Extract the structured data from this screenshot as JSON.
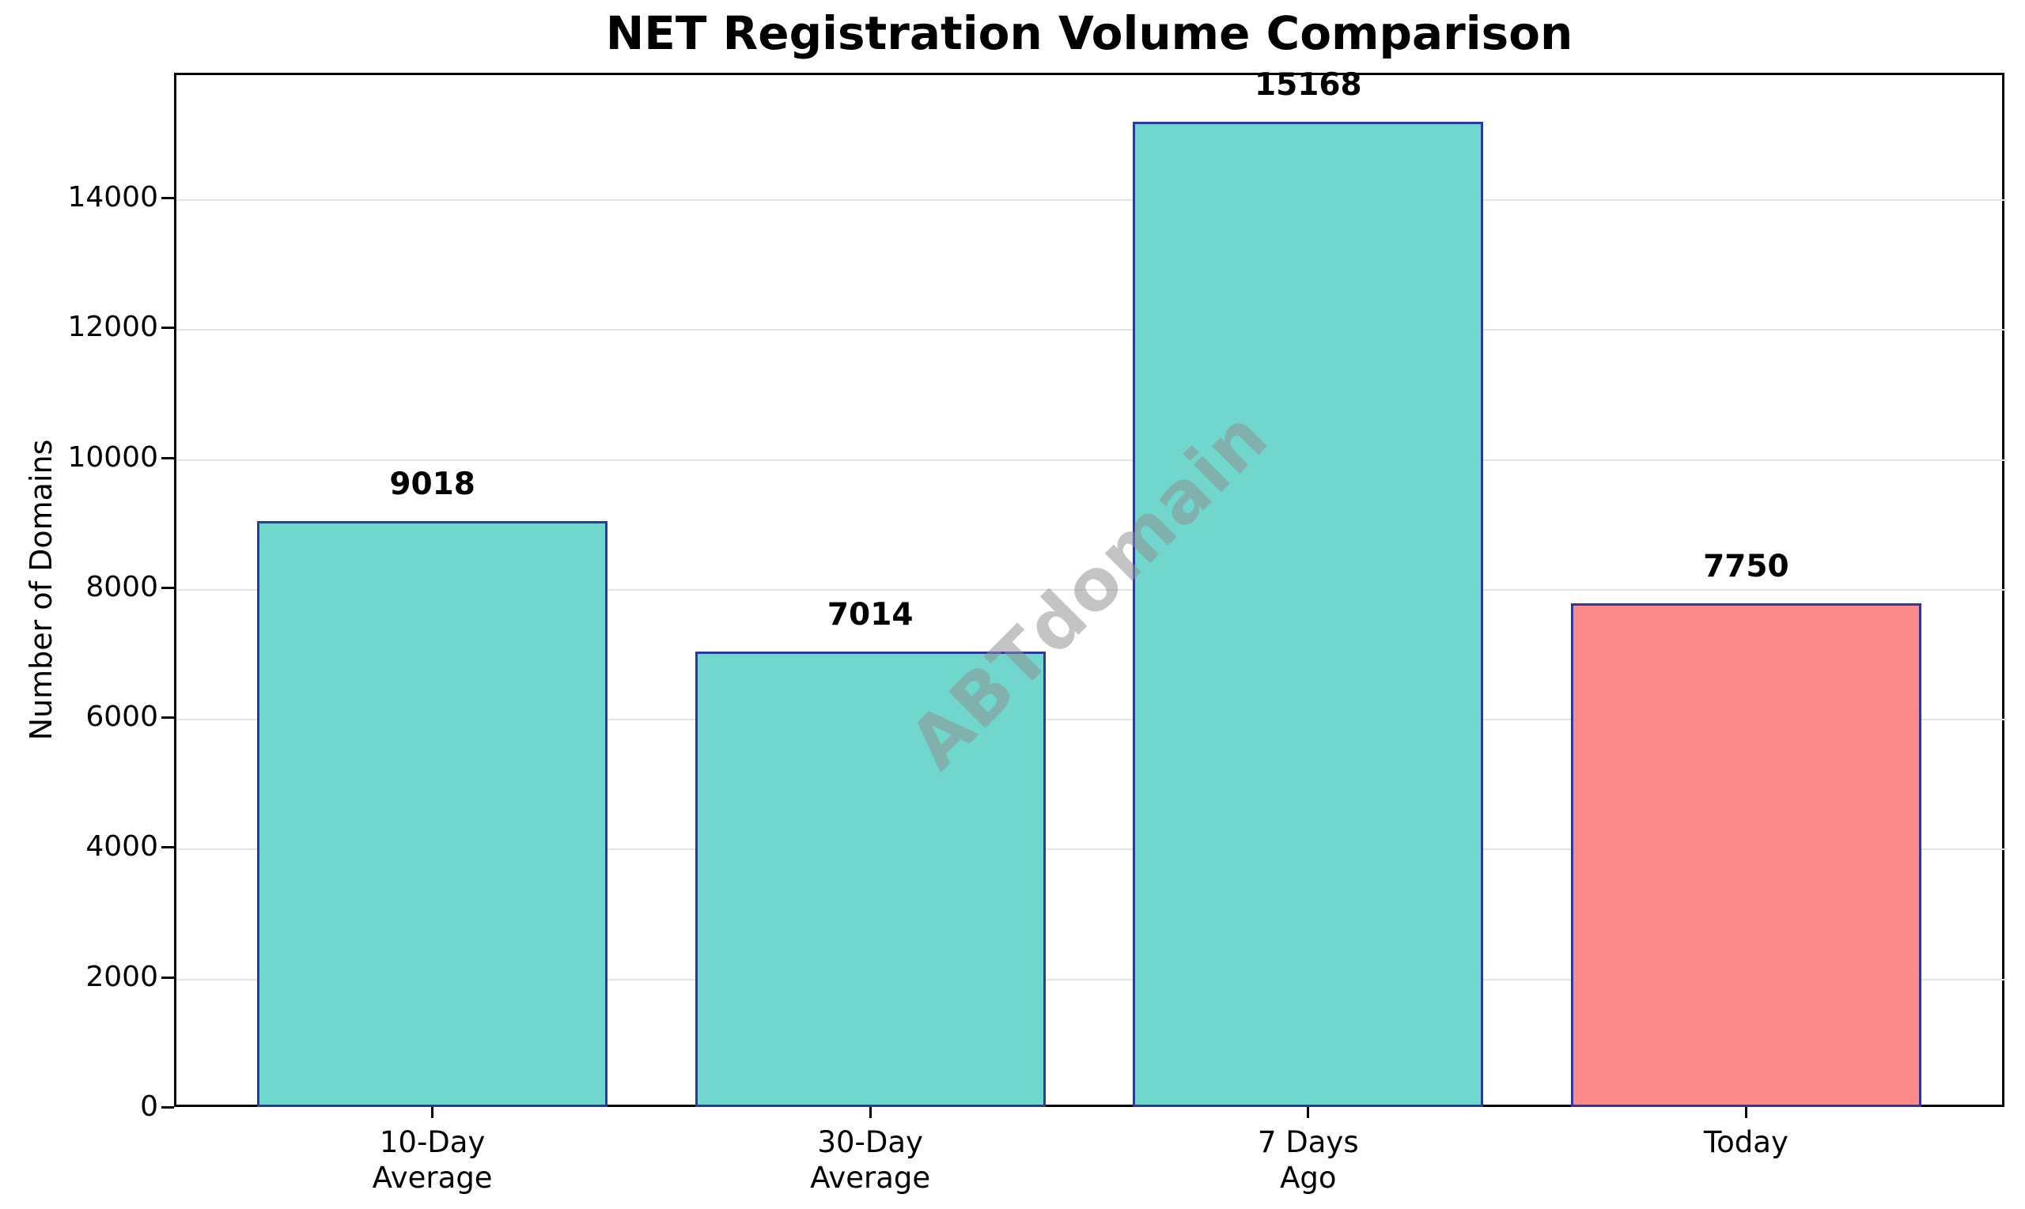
{
  "chart_data": {
    "type": "bar",
    "title": "NET Registration Volume Comparison",
    "ylabel": "Number of Domains",
    "xlabel": "",
    "categories": [
      [
        "10-Day",
        "Average"
      ],
      [
        "30-Day",
        "Average"
      ],
      [
        "7 Days",
        "Ago"
      ],
      [
        "Today"
      ]
    ],
    "values": [
      9018,
      7014,
      15168,
      7750
    ],
    "bar_colors": [
      "#71d7cd",
      "#71d7cd",
      "#71d7cd",
      "#fd8a8a"
    ],
    "bar_edge_color": "#2b3a9c",
    "yticks": [
      0,
      2000,
      4000,
      6000,
      8000,
      10000,
      12000,
      14000
    ],
    "ylim": [
      0,
      15926
    ],
    "grid": "horizontal",
    "gridline_color": "#e3e3e3",
    "legend": "none",
    "watermark": "ABTdomain",
    "watermark_color": "#8f8f8f"
  }
}
